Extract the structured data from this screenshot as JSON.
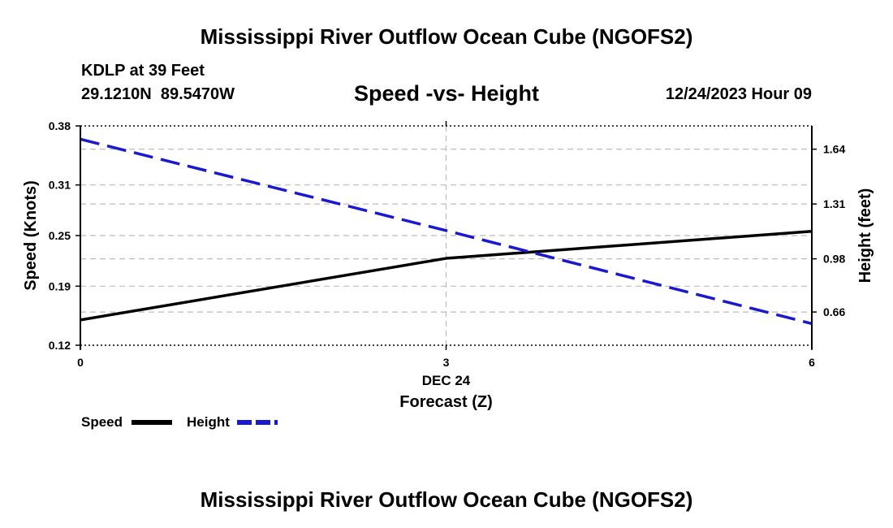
{
  "header": {
    "main_title": "Mississippi River Outflow Ocean Cube (NGOFS2)",
    "station_line": "KDLP at 39 Feet",
    "coords": "29.1210N  89.5470W",
    "timestamp": "12/24/2023 Hour 09"
  },
  "footer": {
    "main_title": "Mississippi River Outflow Ocean Cube (NGOFS2)"
  },
  "colors": {
    "speed": "#000000",
    "height": "#1a1acc",
    "grid": "#bbbbbb"
  },
  "chart_data": {
    "type": "line",
    "title": "Speed -vs- Height",
    "xlabel": "Forecast (Z)",
    "xlabel_date": "DEC 24",
    "ylabel_left": "Speed (Knots)",
    "ylabel_right": "Height (feet)",
    "x_ticks": [
      0,
      3,
      6
    ],
    "x_tick_labels": [
      "0",
      "3",
      "6"
    ],
    "xlim": [
      0,
      6
    ],
    "ylim_left": [
      0.12,
      0.38
    ],
    "ylim_right": [
      0.46,
      1.78
    ],
    "y_ticks_left": [
      0.12,
      0.19,
      0.25,
      0.31,
      0.38
    ],
    "y_tick_labels_left": [
      "0.12",
      "0.19",
      "0.25",
      "0.31",
      "0.38"
    ],
    "y_ticks_right": [
      0.66,
      0.98,
      1.31,
      1.64
    ],
    "y_tick_labels_right": [
      "0.66",
      "0.98",
      "1.31",
      "1.64"
    ],
    "series": [
      {
        "name": "Speed",
        "axis": "left",
        "style": "solid",
        "x": [
          0,
          3,
          6
        ],
        "values": [
          0.15,
          0.223,
          0.255
        ]
      },
      {
        "name": "Height",
        "axis": "right",
        "style": "dashed",
        "x": [
          0,
          3,
          6
        ],
        "values": [
          1.7,
          1.15,
          0.59
        ]
      }
    ],
    "legend": [
      {
        "label": "Speed"
      },
      {
        "label": "Height"
      }
    ],
    "grid": true,
    "legend_position": "bottom-left"
  }
}
